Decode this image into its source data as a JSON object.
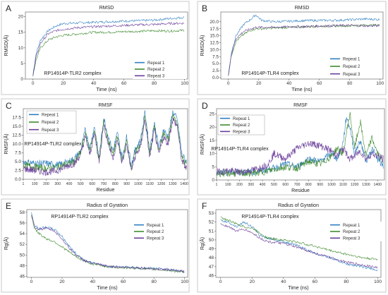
{
  "figure": {
    "repeat_colors": [
      "#2f7fc0",
      "#3f8a2e",
      "#6a3d9a"
    ]
  },
  "chart_data": [
    {
      "panel": "A",
      "type": "line",
      "title": "RMSD",
      "xlabel": "Time (ns)",
      "ylabel": "RMSD(Å)",
      "xlim": [
        -5,
        102
      ],
      "ylim": [
        0,
        21.5
      ],
      "xticks": [
        0,
        20,
        40,
        60,
        80,
        100
      ],
      "yticks": [
        0,
        5,
        10,
        15,
        20
      ],
      "annotation": "RP14914P-TLR2 complex",
      "legend": "right-middle",
      "series": [
        {
          "name": "Repeat 1",
          "x": [
            0,
            2,
            5,
            10,
            15,
            20,
            30,
            40,
            50,
            60,
            70,
            80,
            90,
            100
          ],
          "y": [
            1.5,
            8,
            12.5,
            15.5,
            17,
            17.8,
            18,
            18.2,
            18.4,
            18.6,
            18.7,
            18.9,
            19.4,
            19.8
          ]
        },
        {
          "name": "Repeat 2",
          "x": [
            0,
            2,
            5,
            10,
            15,
            20,
            30,
            40,
            50,
            60,
            70,
            80,
            90,
            100
          ],
          "y": [
            1.2,
            6,
            10,
            12.5,
            13.5,
            14,
            14.5,
            15,
            15,
            15.2,
            15.3,
            15.5,
            15.4,
            15.6
          ]
        },
        {
          "name": "Repeat 3",
          "x": [
            0,
            2,
            5,
            10,
            15,
            20,
            30,
            40,
            50,
            60,
            70,
            80,
            90,
            100
          ],
          "y": [
            1.3,
            7,
            11.5,
            14.5,
            15.5,
            16,
            16.5,
            16.8,
            17,
            17.2,
            17.4,
            17.5,
            17.8,
            17.9
          ]
        }
      ]
    },
    {
      "panel": "B",
      "type": "line",
      "title": "RMSD",
      "xlabel": "Time (ns)",
      "ylabel": "RMSD(Å)",
      "xlim": [
        -5,
        102
      ],
      "ylim": [
        -0.5,
        23.5
      ],
      "xticks": [
        0,
        20,
        40,
        60,
        80,
        100
      ],
      "yticks": [
        0.0,
        2.5,
        5.0,
        7.5,
        10.0,
        12.5,
        15.0,
        17.5,
        20.0
      ],
      "annotation": "RP14914P-TLR4 complex",
      "legend": "right-middle",
      "series": [
        {
          "name": "Repeat 1",
          "x": [
            0,
            2,
            5,
            10,
            15,
            18,
            22,
            30,
            40,
            50,
            60,
            70,
            80,
            90,
            100
          ],
          "y": [
            1,
            9,
            15,
            19,
            21,
            22.5,
            20.5,
            20,
            20.2,
            20.4,
            20.5,
            20.5,
            20.7,
            21,
            20.8
          ]
        },
        {
          "name": "Repeat 2",
          "x": [
            0,
            2,
            5,
            10,
            15,
            18,
            22,
            30,
            40,
            50,
            60,
            70,
            80,
            90,
            100
          ],
          "y": [
            1,
            8,
            13,
            15.5,
            17,
            17.5,
            17.5,
            17.8,
            18,
            18.2,
            18.4,
            18.5,
            18.6,
            18.8,
            18.8
          ]
        },
        {
          "name": "Repeat 3",
          "x": [
            0,
            2,
            5,
            10,
            15,
            18,
            22,
            30,
            40,
            50,
            60,
            70,
            80,
            90,
            100
          ],
          "y": [
            1,
            8.5,
            14,
            16.5,
            17.5,
            18,
            18,
            18,
            18.2,
            18.3,
            18.5,
            18.6,
            18.7,
            18.5,
            18.6
          ]
        }
      ]
    },
    {
      "panel": "C",
      "type": "line",
      "title": "RMSF",
      "xlabel": "Residue",
      "ylabel": "RMSF(Å)",
      "xlim": [
        1,
        1430
      ],
      "ylim": [
        0,
        20
      ],
      "xticks": [
        1,
        100,
        200,
        300,
        400,
        500,
        600,
        700,
        800,
        900,
        1000,
        1100,
        1200,
        1300,
        1400
      ],
      "yticks": [
        0.0,
        2.5,
        5.0,
        7.5,
        10.0,
        12.5,
        15.0,
        17.5
      ],
      "annotation": "RP14914P-TLR2 complex",
      "legend": "top-left",
      "series": [
        {
          "name": "Repeat 1",
          "x": [
            1,
            100,
            200,
            300,
            400,
            450,
            500,
            540,
            580,
            620,
            660,
            700,
            740,
            780,
            820,
            860,
            900,
            940,
            980,
            1020,
            1060,
            1100,
            1140,
            1180,
            1220,
            1260,
            1300,
            1340,
            1380,
            1420
          ],
          "y": [
            5,
            4.5,
            4.5,
            4,
            5,
            6,
            8,
            14,
            9,
            15,
            6,
            17.5,
            12,
            8,
            13,
            6,
            12,
            4,
            9,
            11,
            19,
            8,
            16,
            9,
            14,
            12,
            19,
            17,
            7,
            5
          ]
        },
        {
          "name": "Repeat 2",
          "x": [
            1,
            100,
            200,
            300,
            400,
            450,
            500,
            540,
            580,
            620,
            660,
            700,
            740,
            780,
            820,
            860,
            900,
            940,
            980,
            1020,
            1060,
            1100,
            1140,
            1180,
            1220,
            1260,
            1300,
            1340,
            1380,
            1420
          ],
          "y": [
            4,
            3.5,
            3,
            3.5,
            4.5,
            5,
            7.5,
            13,
            8,
            14,
            5.5,
            16.5,
            11,
            7,
            12,
            5,
            11,
            3,
            8,
            10,
            18,
            7,
            15,
            8,
            13,
            11,
            18,
            16,
            6,
            4
          ]
        },
        {
          "name": "Repeat 3",
          "x": [
            1,
            100,
            200,
            300,
            400,
            450,
            500,
            540,
            580,
            620,
            660,
            700,
            740,
            780,
            820,
            860,
            900,
            940,
            980,
            1020,
            1060,
            1100,
            1140,
            1180,
            1220,
            1260,
            1300,
            1340,
            1380,
            1420
          ],
          "y": [
            3,
            2.5,
            2,
            2.5,
            4,
            4.5,
            7,
            12,
            7,
            13,
            5,
            15.5,
            10,
            6,
            11,
            4.5,
            10,
            2.5,
            7,
            9,
            17,
            6,
            14,
            7,
            12,
            10,
            17,
            15,
            5,
            3
          ]
        }
      ]
    },
    {
      "panel": "D",
      "type": "line",
      "title": "RMSF",
      "xlabel": "Residue",
      "ylabel": "RMSF(Å)",
      "xlim": [
        1,
        1460
      ],
      "ylim": [
        0,
        27
      ],
      "xticks": [
        1,
        100,
        200,
        300,
        400,
        500,
        600,
        700,
        800,
        900,
        1000,
        1100,
        1200,
        1300,
        1400
      ],
      "yticks": [
        0,
        5,
        10,
        15,
        20,
        25
      ],
      "annotation": "RP14914P-TLR4 complex",
      "legend": "top-left",
      "series": [
        {
          "name": "Repeat 1",
          "x": [
            1,
            100,
            200,
            300,
            400,
            450,
            500,
            600,
            700,
            800,
            900,
            1000,
            1050,
            1100,
            1130,
            1160,
            1200,
            1250,
            1300,
            1350,
            1400,
            1450
          ],
          "y": [
            3,
            3,
            3,
            3,
            3.5,
            4,
            4.5,
            6,
            5,
            8,
            7,
            10,
            8,
            14,
            24,
            20,
            10,
            15,
            7,
            12,
            8,
            5
          ]
        },
        {
          "name": "Repeat 2",
          "x": [
            1,
            100,
            200,
            300,
            400,
            450,
            500,
            600,
            700,
            800,
            900,
            1000,
            1050,
            1100,
            1130,
            1160,
            1200,
            1250,
            1300,
            1350,
            1400,
            1450
          ],
          "y": [
            2.5,
            2.5,
            2.5,
            2.5,
            3,
            3.5,
            4,
            5,
            4.5,
            7,
            6,
            9,
            12,
            10,
            18,
            25,
            12,
            22,
            9,
            16,
            10,
            7
          ]
        },
        {
          "name": "Repeat 3",
          "x": [
            1,
            100,
            200,
            300,
            400,
            450,
            500,
            600,
            700,
            800,
            900,
            1000,
            1050,
            1100,
            1130,
            1160,
            1200,
            1250,
            1300,
            1350,
            1400,
            1450
          ],
          "y": [
            3,
            3.5,
            3,
            3.5,
            5,
            6,
            10,
            8,
            12,
            14,
            13,
            11,
            9,
            12,
            10,
            8,
            9,
            11,
            8,
            10,
            9,
            8
          ]
        }
      ]
    },
    {
      "panel": "E",
      "type": "line",
      "title": "Radius of Gyration",
      "xlabel": "Time (ns)",
      "ylabel": "Rg(Å)",
      "xlim": [
        -3,
        102
      ],
      "ylim": [
        45.8,
        58.5
      ],
      "xticks": [
        0,
        20,
        40,
        60,
        80,
        100
      ],
      "yticks": [
        46,
        48,
        50,
        52,
        54,
        56,
        58
      ],
      "annotation": "RP14914P-TLR2 complex",
      "legend": "right-middle",
      "series": [
        {
          "name": "Repeat 1",
          "x": [
            0,
            2,
            5,
            10,
            15,
            20,
            25,
            30,
            35,
            40,
            50,
            60,
            70,
            80,
            90,
            100
          ],
          "y": [
            57.8,
            55.5,
            55,
            55.2,
            54.8,
            53.5,
            51.5,
            50,
            49,
            48.5,
            47.8,
            47.8,
            47.6,
            47.5,
            47.3,
            46.8
          ]
        },
        {
          "name": "Repeat 2",
          "x": [
            0,
            2,
            5,
            10,
            15,
            20,
            25,
            30,
            35,
            40,
            50,
            60,
            70,
            80,
            90,
            100
          ],
          "y": [
            57.5,
            55,
            54,
            53,
            52.5,
            51.5,
            50.5,
            49.5,
            48.8,
            48.3,
            47.8,
            47.6,
            47.5,
            47.3,
            47.1,
            46.7
          ]
        },
        {
          "name": "Repeat 3",
          "x": [
            0,
            2,
            5,
            10,
            15,
            20,
            25,
            30,
            35,
            40,
            50,
            60,
            70,
            80,
            90,
            100
          ],
          "y": [
            57.6,
            55.3,
            54.8,
            55,
            54.5,
            53,
            51.2,
            49.8,
            48.9,
            48.4,
            47.9,
            47.7,
            47.6,
            47.4,
            47.2,
            46.9
          ]
        }
      ]
    },
    {
      "panel": "F",
      "type": "line",
      "title": "Radius of Gyration",
      "xlabel": "Time (ns)",
      "ylabel": "Rg(Å)",
      "xlim": [
        -3,
        102
      ],
      "ylim": [
        45.8,
        53.4
      ],
      "xticks": [
        0,
        20,
        40,
        60,
        80,
        100
      ],
      "yticks": [
        46,
        47,
        48,
        49,
        50,
        51,
        52,
        53
      ],
      "annotation": "RP14914P-TLR4 complex",
      "legend": "right-middle",
      "series": [
        {
          "name": "Repeat 1",
          "x": [
            0,
            5,
            10,
            15,
            20,
            25,
            30,
            40,
            50,
            60,
            70,
            80,
            90,
            100
          ],
          "y": [
            52.2,
            52,
            51.5,
            52,
            51.5,
            50.5,
            50.2,
            49.8,
            49.3,
            48.5,
            48,
            47.3,
            47,
            46.6
          ]
        },
        {
          "name": "Repeat 2",
          "x": [
            0,
            5,
            10,
            15,
            20,
            25,
            30,
            40,
            50,
            60,
            70,
            80,
            90,
            100
          ],
          "y": [
            52.5,
            52.2,
            51.8,
            51.5,
            51.3,
            50.8,
            50.2,
            50,
            49.7,
            49.3,
            48.8,
            48.4,
            48,
            47.8
          ]
        },
        {
          "name": "Repeat 3",
          "x": [
            0,
            5,
            10,
            15,
            20,
            25,
            30,
            40,
            50,
            60,
            70,
            80,
            90,
            100
          ],
          "y": [
            51.8,
            51.5,
            51,
            51.2,
            50.8,
            50.2,
            49.8,
            49.6,
            49.1,
            48.5,
            48,
            47.5,
            47.2,
            46.9
          ]
        }
      ]
    }
  ]
}
